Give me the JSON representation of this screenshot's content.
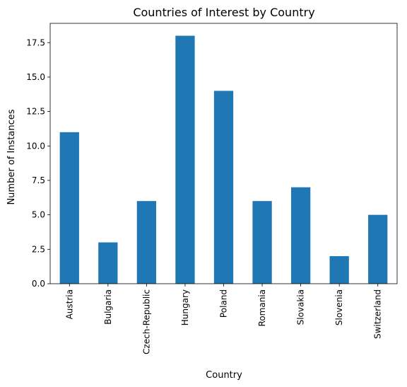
{
  "chart_data": {
    "type": "bar",
    "title": "Countries of Interest by Country",
    "xlabel": "Country",
    "ylabel": "Number of Instances",
    "categories": [
      "Austria",
      "Bulgaria",
      "Czech-Republic",
      "Hungary",
      "Poland",
      "Romania",
      "Slovakia",
      "Slovenia",
      "Switzerland"
    ],
    "values": [
      11,
      3,
      6,
      18,
      14,
      6,
      7,
      2,
      5
    ],
    "ylim": [
      0,
      18.9
    ],
    "yticks": [
      0,
      2.5,
      5,
      7.5,
      10,
      12.5,
      15,
      17.5
    ],
    "ytick_labels": [
      "0.0",
      "2.5",
      "5.0",
      "7.5",
      "10.0",
      "12.5",
      "15.0",
      "17.5"
    ],
    "bar_color": "#1f77b4",
    "grid": false,
    "legend": "none"
  }
}
